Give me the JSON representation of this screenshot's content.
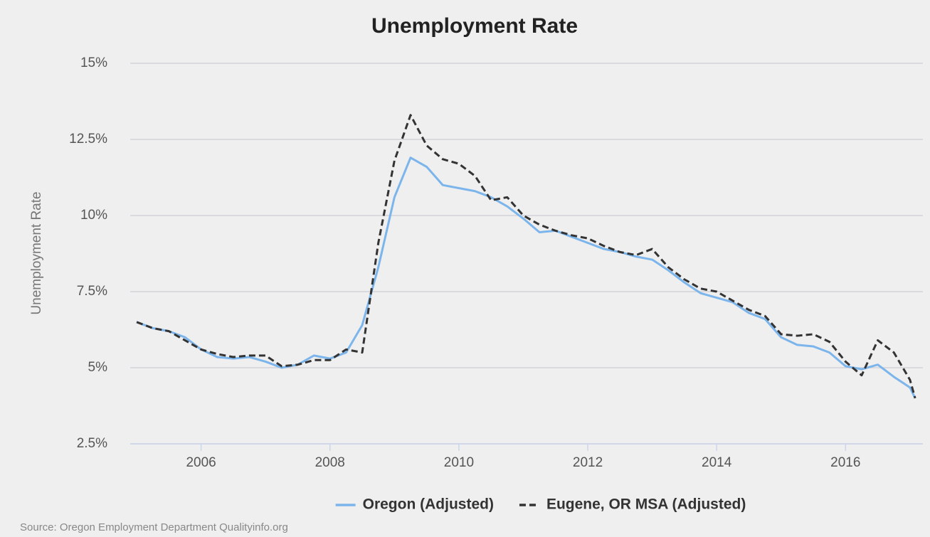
{
  "chart_data": {
    "type": "line",
    "title": "Unemployment Rate",
    "y_label": "Unemployment Rate",
    "source": "Source: Oregon Employment Department Qualityinfo.org",
    "x": [
      2005.0,
      2005.25,
      2005.5,
      2005.75,
      2006.0,
      2006.25,
      2006.5,
      2006.75,
      2007.0,
      2007.25,
      2007.5,
      2007.75,
      2008.0,
      2008.25,
      2008.5,
      2008.75,
      2009.0,
      2009.25,
      2009.5,
      2009.75,
      2010.0,
      2010.25,
      2010.5,
      2010.75,
      2011.0,
      2011.25,
      2011.5,
      2011.75,
      2012.0,
      2012.25,
      2012.5,
      2012.75,
      2013.0,
      2013.25,
      2013.5,
      2013.75,
      2014.0,
      2014.25,
      2014.5,
      2014.75,
      2015.0,
      2015.25,
      2015.5,
      2015.75,
      2016.0,
      2016.25,
      2016.5,
      2016.75,
      2017.0,
      2017.08
    ],
    "series": [
      {
        "name": "Oregon (Adjusted)",
        "color": "#7cb5ec",
        "dash": "solid",
        "values": [
          6.5,
          6.3,
          6.2,
          6.0,
          5.6,
          5.35,
          5.3,
          5.35,
          5.2,
          5.0,
          5.1,
          5.4,
          5.3,
          5.5,
          6.4,
          8.3,
          10.6,
          11.9,
          11.6,
          11.0,
          10.9,
          10.8,
          10.6,
          10.3,
          9.9,
          9.45,
          9.5,
          9.3,
          9.1,
          8.9,
          8.8,
          8.65,
          8.55,
          8.2,
          7.8,
          7.45,
          7.3,
          7.15,
          6.8,
          6.6,
          6.0,
          5.75,
          5.7,
          5.5,
          5.05,
          4.95,
          5.1,
          4.7,
          4.35,
          4.0
        ]
      },
      {
        "name": "Eugene, OR MSA (Adjusted)",
        "color": "#333333",
        "dash": "dashed",
        "values": [
          6.5,
          6.3,
          6.2,
          5.9,
          5.6,
          5.45,
          5.35,
          5.4,
          5.4,
          5.05,
          5.1,
          5.25,
          5.25,
          5.6,
          5.5,
          9.1,
          11.8,
          13.3,
          12.3,
          11.85,
          11.7,
          11.3,
          10.5,
          10.6,
          10.0,
          9.7,
          9.5,
          9.35,
          9.25,
          9.0,
          8.8,
          8.7,
          8.9,
          8.3,
          7.9,
          7.6,
          7.5,
          7.2,
          6.9,
          6.7,
          6.1,
          6.05,
          6.1,
          5.85,
          5.2,
          4.75,
          5.9,
          5.5,
          4.6,
          4.0
        ]
      }
    ],
    "xlim": [
      2004.9,
      2017.2
    ],
    "xticks": [
      2006,
      2008,
      2010,
      2012,
      2014,
      2016
    ],
    "ylim": [
      2.5,
      15
    ],
    "yticks": [
      {
        "value": 2.5,
        "label": "2.5%"
      },
      {
        "value": 5,
        "label": "5%"
      },
      {
        "value": 7.5,
        "label": "7.5%"
      },
      {
        "value": 10,
        "label": "10%"
      },
      {
        "value": 12.5,
        "label": "12.5%"
      },
      {
        "value": 15,
        "label": "15%"
      }
    ],
    "grid": true,
    "legend": "bottom"
  }
}
